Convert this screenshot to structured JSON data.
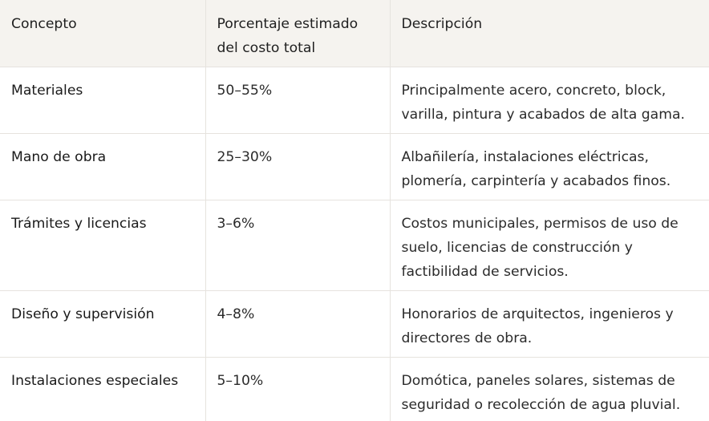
{
  "table": {
    "headers": [
      "Concepto",
      "Porcentaje estimado del costo total",
      "Descripción"
    ],
    "rows": [
      {
        "concepto": "Materiales",
        "porcentaje": "50–55%",
        "descripcion": "Principalmente acero, concreto, block, varilla, pintura y acabados de alta gama."
      },
      {
        "concepto": "Mano de obra",
        "porcentaje": "25–30%",
        "descripcion": "Albañilería, instalaciones eléctricas, plomería, carpintería y acabados finos."
      },
      {
        "concepto": "Trámites y licencias",
        "porcentaje": "3–6%",
        "descripcion": "Costos municipales, permisos de uso de suelo, licencias de construcción y factibilidad de servicios."
      },
      {
        "concepto": "Diseño y supervisión",
        "porcentaje": "4–8%",
        "descripcion": "Honorarios de arquitectos, ingenieros y directores de obra."
      },
      {
        "concepto": "Instalaciones especiales",
        "porcentaje": "5–10%",
        "descripcion": "Domótica, paneles solares, sistemas de seguridad o recolección de agua pluvial."
      }
    ]
  }
}
